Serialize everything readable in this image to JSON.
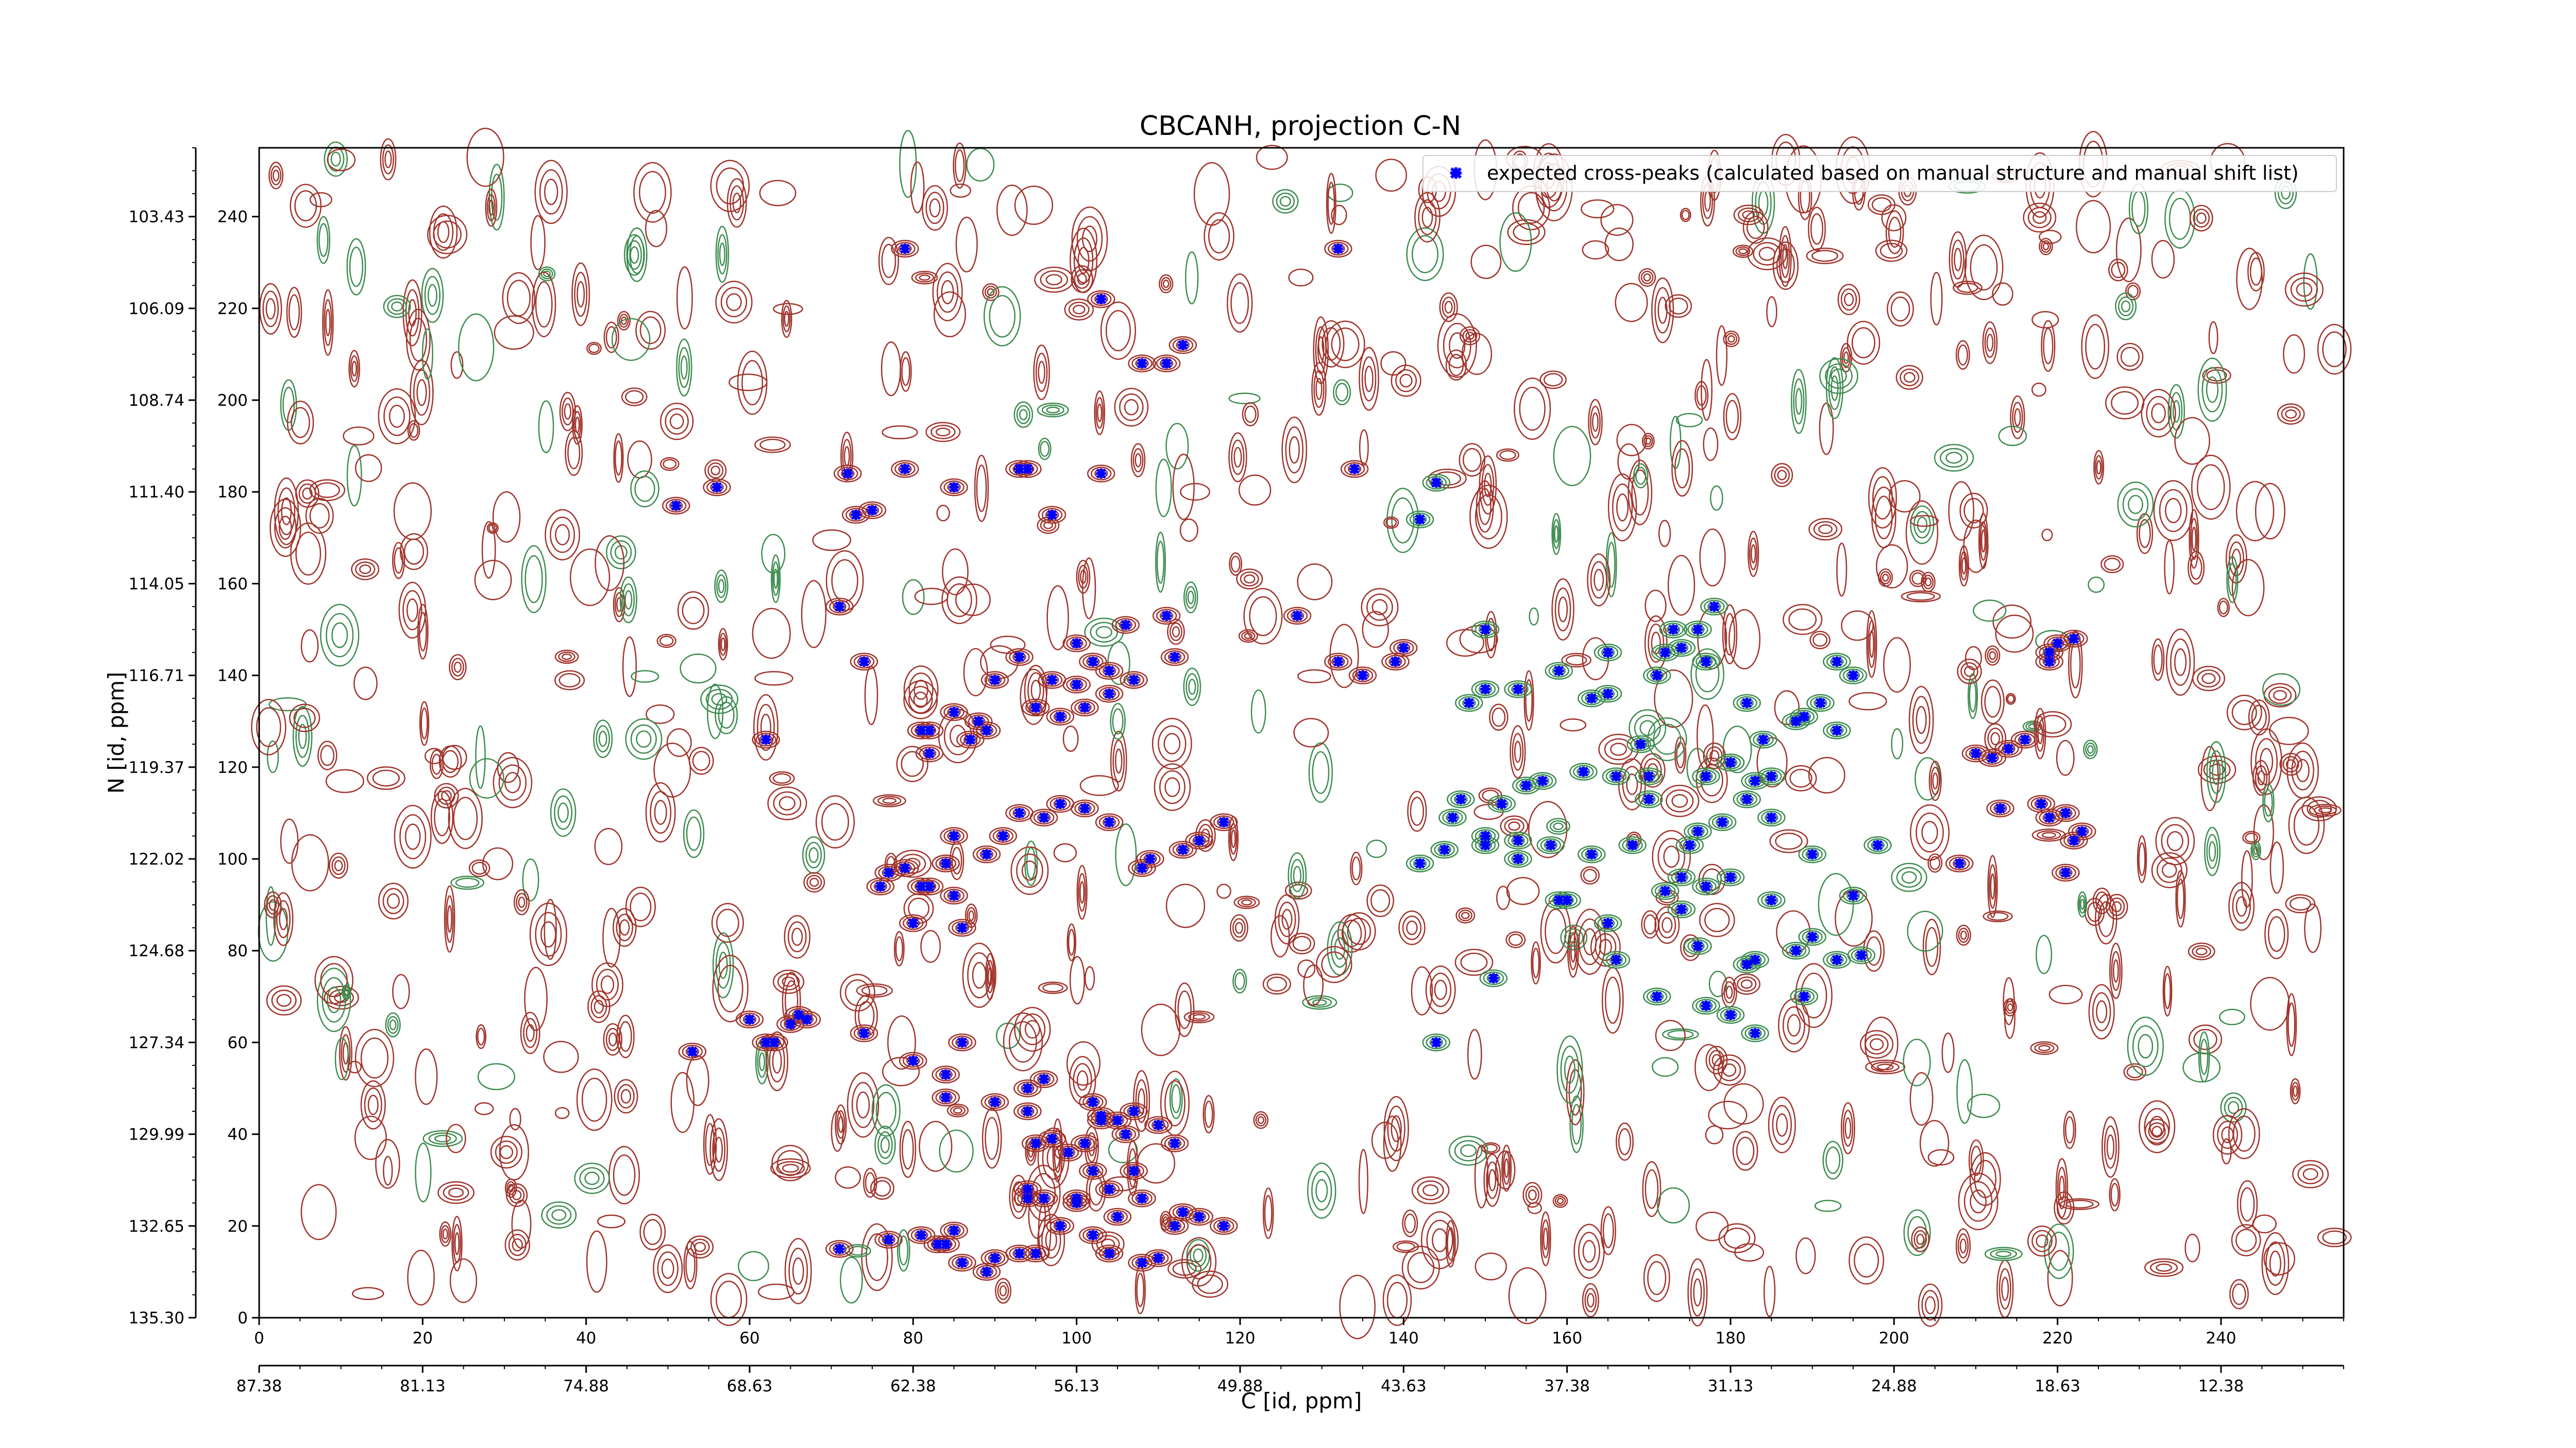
{
  "chart_data": {
    "type": "scatter",
    "title": "CBCANH, projection C-N",
    "xlabel": "C [id, ppm]",
    "ylabel": "N [id, ppm]",
    "xlim": [
      0,
      255
    ],
    "ylim": [
      0,
      255
    ],
    "x_ticks_id": [
      0,
      20,
      40,
      60,
      80,
      100,
      120,
      140,
      160,
      180,
      200,
      220,
      240
    ],
    "x_tick_labels_id": [
      "0",
      "20",
      "40",
      "60",
      "80",
      "100",
      "120",
      "140",
      "160",
      "180",
      "200",
      "220",
      "240"
    ],
    "x_ticks_ppm_pos": [
      0,
      20,
      40,
      60,
      80,
      100,
      120,
      140,
      160,
      180,
      200,
      220,
      240
    ],
    "x_tick_labels_ppm": [
      "87.38",
      "81.13",
      "74.88",
      "68.63",
      "62.38",
      "56.13",
      "49.88",
      "43.63",
      "37.38",
      "31.13",
      "24.88",
      "18.63",
      "12.38"
    ],
    "y_ticks_id": [
      0,
      20,
      40,
      60,
      80,
      100,
      120,
      140,
      160,
      180,
      200,
      220,
      240
    ],
    "y_tick_labels_id": [
      "0",
      "20",
      "40",
      "60",
      "80",
      "100",
      "120",
      "140",
      "160",
      "180",
      "200",
      "220",
      "240"
    ],
    "y_ticks_ppm_pos": [
      0,
      20,
      40,
      60,
      80,
      100,
      120,
      140,
      160,
      180,
      200,
      220,
      240
    ],
    "y_tick_labels_ppm": [
      "135.30",
      "132.65",
      "129.99",
      "127.34",
      "124.68",
      "122.02",
      "119.37",
      "116.71",
      "114.05",
      "111.40",
      "108.74",
      "106.09",
      "103.43"
    ],
    "legend": {
      "placement": "top-right",
      "entries": [
        "expected cross-peaks (calculated based on manual structure and manual shift list)"
      ]
    },
    "colors": {
      "positive_contour": "#a0332b",
      "negative_contour": "#3d8c4f",
      "peak_marker": "#0000ff"
    },
    "series": [
      {
        "name": "expected cross-peaks (calculated based on manual structure and manual shift list)",
        "x": [
          79,
          132,
          103,
          113,
          111,
          108,
          94,
          93,
          79,
          72,
          85,
          51,
          56,
          75,
          73,
          97,
          103,
          134,
          144,
          142,
          127,
          111,
          106,
          112,
          102,
          100,
          97,
          100,
          104,
          107,
          104,
          101,
          98,
          89,
          95,
          85,
          88,
          87,
          82,
          90,
          93,
          62,
          81,
          82,
          71,
          74,
          132,
          135,
          139,
          140,
          150,
          150,
          148,
          154,
          159,
          163,
          165,
          172,
          174,
          173,
          176,
          178,
          171,
          165,
          177,
          182,
          189,
          191,
          193,
          188,
          195,
          193,
          184,
          185,
          180,
          183,
          182,
          185,
          179,
          176,
          175,
          168,
          163,
          158,
          154,
          150,
          152,
          147,
          145,
          142,
          157,
          162,
          166,
          170,
          170,
          177,
          180,
          169,
          155,
          146,
          150,
          154,
          159,
          165,
          166,
          171,
          180,
          183,
          182,
          189,
          193,
          196,
          151,
          144,
          177,
          183,
          188,
          174,
          176,
          190,
          118,
          115,
          113,
          109,
          108,
          104,
          101,
          98,
          96,
          93,
          91,
          89,
          85,
          82,
          84,
          85,
          86,
          80,
          81,
          79,
          84,
          77,
          76,
          65,
          63,
          66,
          74,
          80,
          86,
          84,
          84,
          90,
          94,
          94,
          96,
          102,
          105,
          107,
          110,
          112,
          106,
          103,
          101,
          99,
          97,
          95,
          103,
          104,
          107,
          102,
          100,
          96,
          94,
          94,
          100,
          105,
          108,
          113,
          115,
          112,
          118,
          110,
          108,
          104,
          102,
          98,
          95,
          93,
          85,
          84,
          83,
          81,
          86,
          89,
          90,
          71,
          77,
          62,
          53,
          60,
          67,
          213,
          219,
          218,
          219,
          220,
          222,
          219,
          216,
          214,
          212,
          210,
          221,
          222,
          223,
          221,
          208,
          190,
          198,
          195,
          172,
          160,
          180,
          177,
          185,
          174
        ],
        "y": [
          233,
          233,
          222,
          212,
          208,
          208,
          185,
          185,
          185,
          184,
          181,
          177,
          181,
          176,
          175,
          175,
          184,
          185,
          182,
          174,
          153,
          153,
          151,
          144,
          143,
          147,
          139,
          138,
          141,
          139,
          136,
          133,
          131,
          128,
          133,
          132,
          130,
          126,
          128,
          139,
          144,
          126,
          128,
          123,
          155,
          143,
          143,
          140,
          143,
          146,
          150,
          137,
          134,
          137,
          141,
          135,
          145,
          145,
          146,
          150,
          150,
          155,
          140,
          136,
          143,
          134,
          131,
          134,
          128,
          130,
          140,
          143,
          126,
          118,
          121,
          117,
          113,
          109,
          108,
          106,
          103,
          103,
          101,
          103,
          104,
          105,
          112,
          113,
          102,
          99,
          117,
          119,
          118,
          118,
          113,
          118,
          121,
          125,
          116,
          109,
          103,
          100,
          91,
          86,
          78,
          70,
          66,
          62,
          77,
          70,
          78,
          79,
          74,
          60,
          68,
          78,
          80,
          96,
          81,
          83,
          108,
          104,
          102,
          100,
          98,
          108,
          111,
          112,
          109,
          110,
          105,
          101,
          105,
          94,
          99,
          92,
          85,
          86,
          94,
          98,
          99,
          97,
          94,
          64,
          60,
          66,
          62,
          56,
          60,
          53,
          48,
          47,
          50,
          45,
          52,
          47,
          43,
          45,
          42,
          38,
          40,
          44,
          38,
          36,
          39,
          38,
          43,
          28,
          32,
          32,
          26,
          26,
          26,
          28,
          25,
          22,
          26,
          23,
          22,
          20,
          20,
          13,
          12,
          14,
          18,
          20,
          14,
          14,
          19,
          16,
          16,
          18,
          12,
          10,
          13,
          15,
          17,
          60,
          58,
          65,
          65,
          111,
          109,
          112,
          145,
          147,
          148,
          143,
          126,
          124,
          122,
          123,
          110,
          104,
          106,
          97,
          99,
          101,
          103,
          92,
          93,
          91,
          96,
          94,
          91,
          89
        ]
      }
    ]
  }
}
